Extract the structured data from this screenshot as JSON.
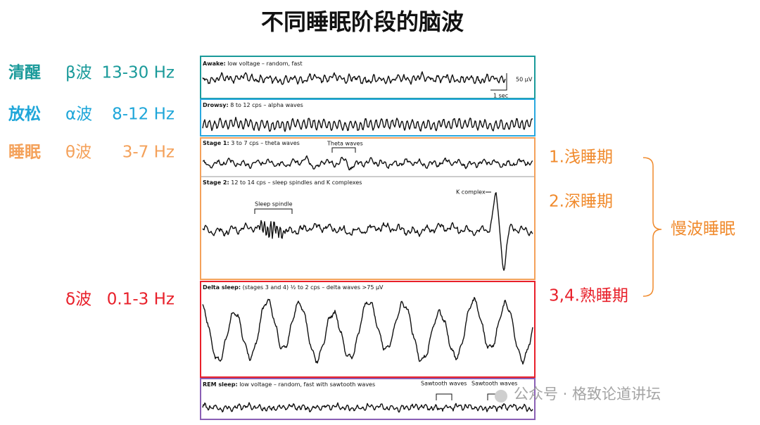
{
  "title": "不同睡眠阶段的脑波",
  "left_labels": [
    {
      "state": "清醒",
      "symbol": "β波",
      "range": "13-30 Hz"
    },
    {
      "state": "放松",
      "symbol": "α波",
      "range": "8-12 Hz"
    },
    {
      "state": "睡眠",
      "symbol": "θ波",
      "range": "3-7 Hz"
    }
  ],
  "delta_label": {
    "symbol": "δ波",
    "range": "0.1-3 Hz"
  },
  "panels": [
    {
      "stage": "Awake:",
      "description": "low voltage – random, fast",
      "annotations": [
        "50 µV",
        "1 sec"
      ]
    },
    {
      "stage": "Drowsy:",
      "description": "8 to 12 cps – alpha waves",
      "annotations": []
    },
    {
      "stage": "Stage 1:",
      "description": "3 to 7 cps – theta waves",
      "annotations": [
        "Theta waves"
      ]
    },
    {
      "stage": "Stage 2:",
      "description": "12 to 14 cps – sleep spindles and K complexes",
      "annotations": [
        "Sleep spindle",
        "K complex"
      ]
    },
    {
      "stage": "Delta sleep:",
      "description": "(stages 3 and 4) ½ to 2 cps – delta waves >75 µV",
      "annotations": []
    },
    {
      "stage": "REM sleep:",
      "description": "low voltage – random, fast with sawtooth waves",
      "annotations": [
        "Sawtooth waves",
        "Sawtooth waves"
      ]
    }
  ],
  "right_labels": [
    "1.浅睡期",
    "2.深睡期",
    "3,4.熟睡期"
  ],
  "bracket_label": "慢波睡眠",
  "watermark": "公众号 · 格致论道讲坛"
}
